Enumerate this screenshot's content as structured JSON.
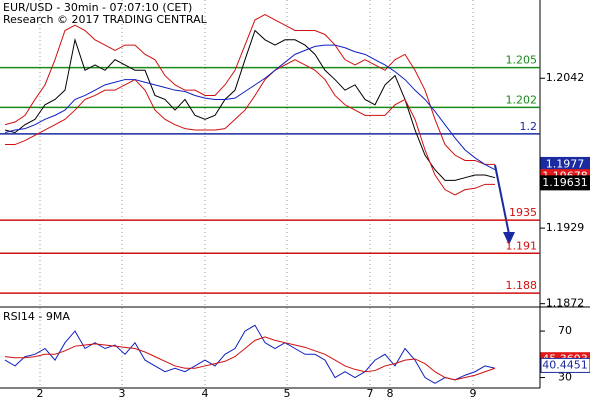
{
  "chart_data": [
    {
      "type": "line",
      "title": "EUR/USD - 30min - 07:07:10 (CET)",
      "subtitle": "Research © 2017 TRADING CENTRAL",
      "x": [
        0,
        1,
        2,
        3,
        4,
        5,
        6,
        7,
        8,
        9,
        10,
        11,
        12,
        13,
        14,
        15,
        16,
        17,
        18,
        19,
        20,
        21,
        22,
        23,
        24,
        25,
        26,
        27,
        28,
        29,
        30,
        31,
        32,
        33,
        34,
        35,
        36,
        37,
        38,
        39,
        40,
        41,
        42,
        43,
        44,
        45,
        46,
        47,
        48,
        49
      ],
      "xlim": [
        -0.5,
        53.5
      ],
      "xticks": [
        {
          "value": 3.5,
          "label": "2"
        },
        {
          "value": 11.7,
          "label": "3"
        },
        {
          "value": 20,
          "label": "4"
        },
        {
          "value": 28.2,
          "label": "5"
        },
        {
          "value": 36.5,
          "label": "7"
        },
        {
          "value": 38.5,
          "label": "8"
        },
        {
          "value": 46.8,
          "label": "9"
        }
      ],
      "ylim": [
        1.1871,
        1.2101
      ],
      "yticks": [
        1.2042,
        1.1929,
        1.1872
      ],
      "series": [
        {
          "name": "price",
          "color": "#000000",
          "values": [
            1.2003,
            1.2001,
            1.2007,
            1.2011,
            1.2022,
            1.2026,
            1.2033,
            1.2071,
            1.2048,
            1.2052,
            1.2048,
            1.2056,
            1.2052,
            1.2048,
            1.2048,
            1.2029,
            1.2026,
            1.2018,
            1.2026,
            1.2014,
            1.2011,
            1.2014,
            1.2026,
            1.2033,
            1.2056,
            1.2078,
            1.2071,
            1.2067,
            1.2071,
            1.2071,
            1.2067,
            1.206,
            1.2048,
            1.2041,
            1.2033,
            1.2037,
            1.2026,
            1.2022,
            1.2037,
            1.2044,
            1.2026,
            1.2003,
            1.1984,
            1.1973,
            1.1965,
            1.1965,
            1.1967,
            1.1969,
            1.1969,
            1.1967
          ]
        },
        {
          "name": "upper band",
          "color": "#d01010",
          "values": [
            1.2007,
            1.2009,
            1.2014,
            1.2026,
            1.2037,
            1.2056,
            1.2078,
            1.2082,
            1.2078,
            1.2071,
            1.2067,
            1.2063,
            1.2067,
            1.2067,
            1.206,
            1.2056,
            1.2044,
            1.2037,
            1.2033,
            1.2033,
            1.2029,
            1.2029,
            1.2037,
            1.2048,
            1.2067,
            1.2086,
            1.209,
            1.2086,
            1.2082,
            1.2078,
            1.2078,
            1.2078,
            1.2075,
            1.2067,
            1.2056,
            1.2052,
            1.2056,
            1.2052,
            1.2048,
            1.2056,
            1.206,
            1.2048,
            1.2033,
            1.2011,
            1.1992,
            1.1984,
            1.198,
            1.198,
            1.1977,
            1.1977
          ]
        },
        {
          "name": "lower band",
          "color": "#d01010",
          "values": [
            1.1992,
            1.1992,
            1.1995,
            1.1999,
            1.2003,
            1.2007,
            1.2011,
            1.2018,
            1.2026,
            1.2029,
            1.2033,
            1.2033,
            1.2037,
            1.2041,
            1.2033,
            1.2018,
            1.2011,
            1.2007,
            1.2004,
            1.2003,
            1.2003,
            1.2003,
            1.2004,
            1.2011,
            1.2018,
            1.2029,
            1.2041,
            1.2048,
            1.2052,
            1.2056,
            1.2052,
            1.2048,
            1.2041,
            1.2029,
            1.2022,
            1.2018,
            1.2014,
            1.2014,
            1.2014,
            1.2022,
            1.2026,
            1.2011,
            1.1988,
            1.1969,
            1.1958,
            1.1954,
            1.1958,
            1.1959,
            1.1962,
            1.1962
          ]
        },
        {
          "name": "moving average",
          "color": "#1020c0",
          "values": [
            1.2001,
            1.2003,
            1.2004,
            1.2007,
            1.2011,
            1.2014,
            1.2018,
            1.2026,
            1.2029,
            1.2033,
            1.2037,
            1.2039,
            1.2041,
            1.2041,
            1.2039,
            1.2037,
            1.2035,
            1.2033,
            1.2032,
            1.2029,
            1.2027,
            1.2026,
            1.2026,
            1.2027,
            1.2032,
            1.2037,
            1.2042,
            1.2048,
            1.2054,
            1.206,
            1.2063,
            1.2066,
            1.2067,
            1.2067,
            1.2065,
            1.2062,
            1.206,
            1.2056,
            1.2052,
            1.2047,
            1.2041,
            1.2033,
            1.2026,
            1.2017,
            1.2007,
            1.1997,
            1.1988,
            1.1982,
            1.1977,
            1.1973
          ]
        }
      ],
      "levels": [
        {
          "value": 1.205,
          "label": "1.205",
          "color": "#1a8a1a"
        },
        {
          "value": 1.202,
          "label": "1.202",
          "color": "#1a8a1a"
        },
        {
          "value": 1.2,
          "label": "1.2",
          "color": "#1a2aa0"
        },
        {
          "value": 1.1935,
          "label": "1935",
          "color": "#d01010"
        },
        {
          "value": 1.191,
          "label": "1.191",
          "color": "#d01010"
        },
        {
          "value": 1.188,
          "label": "1.188",
          "color": "#d01010"
        }
      ],
      "price_tags": [
        {
          "value": 1.1977,
          "color": "#1a2aa0"
        },
        {
          "value": 1.19678,
          "color": "#e01818"
        },
        {
          "value": 1.19631,
          "color": "#000000"
        }
      ]
    },
    {
      "type": "line",
      "title": "RSI14 - 9MA",
      "ylim": [
        21,
        89
      ],
      "yticks": [
        70,
        30
      ],
      "series": [
        {
          "name": "RSI14",
          "color": "#1020c0",
          "values": [
            45,
            40,
            48,
            50,
            55,
            45,
            60,
            70,
            55,
            60,
            55,
            58,
            50,
            60,
            45,
            40,
            35,
            38,
            35,
            40,
            45,
            40,
            50,
            55,
            70,
            75,
            60,
            55,
            60,
            55,
            50,
            50,
            45,
            30,
            35,
            30,
            35,
            45,
            50,
            40,
            55,
            45,
            30,
            25,
            30,
            28,
            32,
            35,
            40,
            38
          ]
        },
        {
          "name": "9MA",
          "color": "#d01010",
          "values": [
            48,
            47,
            47,
            48,
            50,
            50,
            53,
            57,
            58,
            59,
            58,
            57,
            56,
            55,
            52,
            48,
            44,
            40,
            38,
            38,
            40,
            42,
            44,
            48,
            55,
            62,
            65,
            62,
            60,
            58,
            56,
            53,
            50,
            45,
            40,
            37,
            35,
            36,
            40,
            42,
            45,
            46,
            42,
            35,
            30,
            28,
            30,
            32,
            35,
            38
          ]
        }
      ],
      "value_tags": [
        {
          "value": 45.3693,
          "color": "#e01818"
        },
        {
          "value": 40.4451,
          "color": "#1a2aa0"
        }
      ]
    }
  ]
}
